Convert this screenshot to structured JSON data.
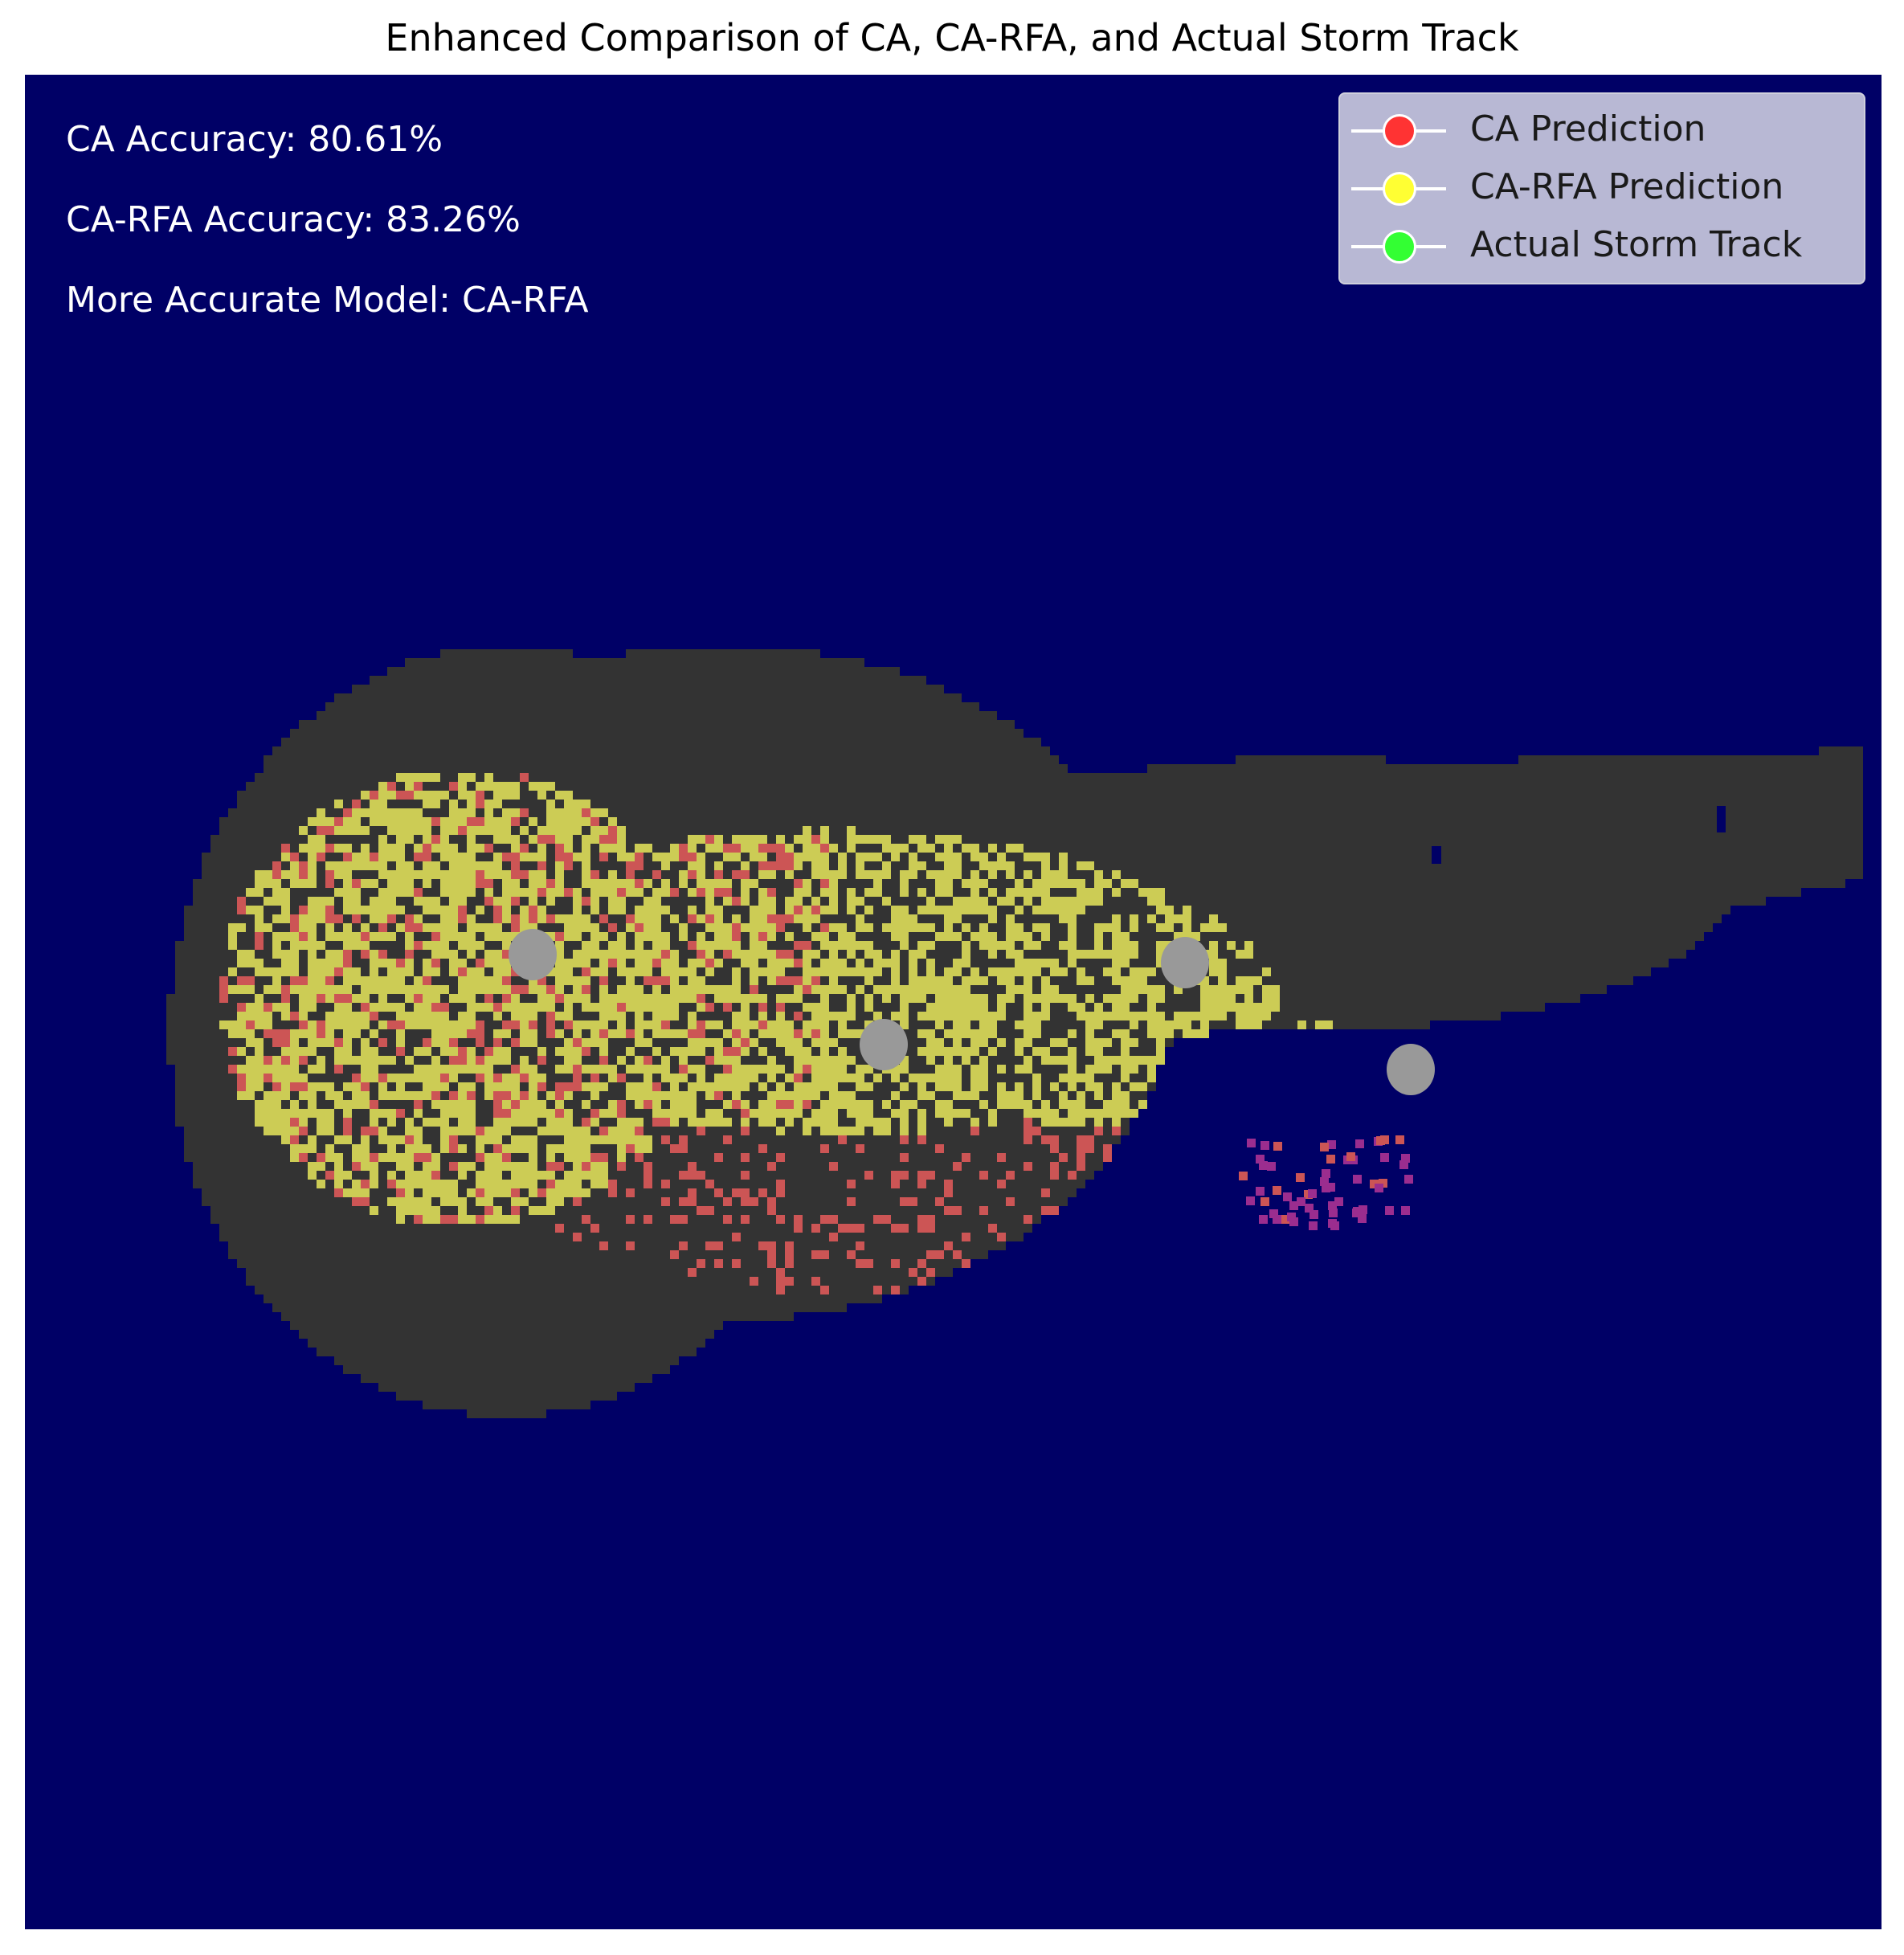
{
  "title": "Enhanced Comparison of CA, CA-RFA, and Actual Storm Track",
  "annotations": {
    "ca_accuracy": "CA Accuracy: 80.61%",
    "carfa_accuracy": "CA-RFA Accuracy: 83.26%",
    "more_accurate": "More Accurate Model: CA-RFA"
  },
  "legend": {
    "placement": "top-right",
    "items": [
      {
        "label": "CA Prediction",
        "color": "#ff3333"
      },
      {
        "label": "CA-RFA Prediction",
        "color": "#ffff33"
      },
      {
        "label": "Actual Storm Track",
        "color": "#33ff33"
      }
    ]
  },
  "colors": {
    "background": "#000066",
    "storm_region": "#333333",
    "ca": "#cc5555",
    "carfa": "#cccc55",
    "centers": "#999999",
    "outlier": "#9b2d8f"
  },
  "chart_data": {
    "type": "heatmap",
    "title": "Enhanced Comparison of CA, CA-RFA, and Actual Storm Track",
    "xlabel": "",
    "ylabel": "",
    "axes_visible": false,
    "grid": false,
    "series": [
      {
        "name": "CA Prediction",
        "summary_accuracy_percent": 80.61
      },
      {
        "name": "CA-RFA Prediction",
        "summary_accuracy_percent": 83.26
      },
      {
        "name": "Actual Storm Track"
      }
    ],
    "more_accurate_model": "CA-RFA"
  }
}
